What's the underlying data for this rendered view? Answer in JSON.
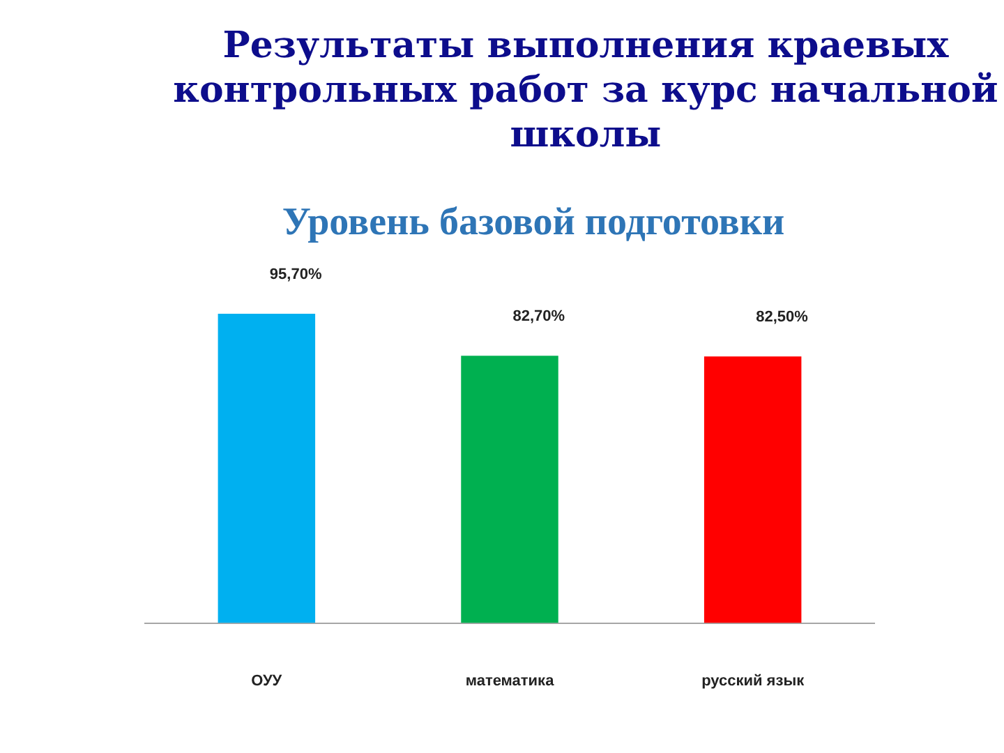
{
  "chart_data": {
    "type": "bar",
    "title": "Результаты выполнения краевых контрольных работ за курс начальной школы",
    "subtitle": "Уровень базовой подготовки",
    "categories": [
      "ОУУ",
      "математика",
      "русский язык"
    ],
    "values": [
      95.7,
      82.7,
      82.5
    ],
    "colors": [
      "#00b0f0",
      "#00b050",
      "#ff0000"
    ],
    "value_labels": [
      "95,70%",
      "82,70%",
      "82,50%"
    ],
    "tick_labels": "x"
  }
}
